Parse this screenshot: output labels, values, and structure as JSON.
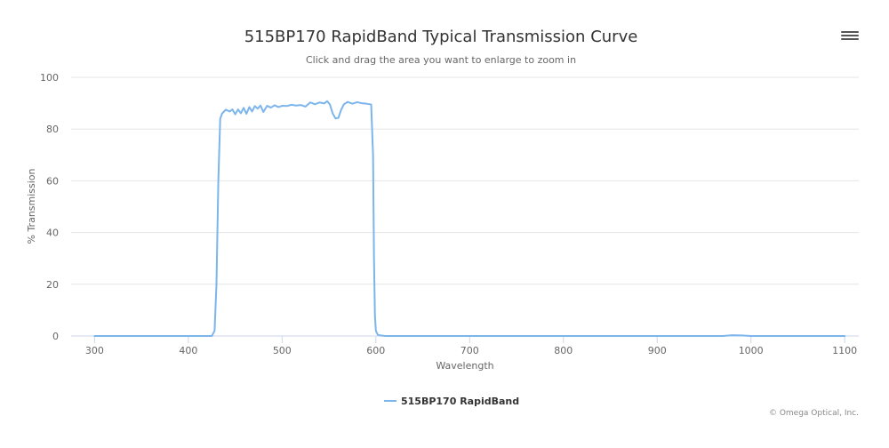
{
  "chart_data": {
    "type": "line",
    "title": "515BP170 RapidBand Typical Transmission Curve",
    "subtitle": "Click and drag the area you want to enlarge to zoom in",
    "xlabel": "Wavelength",
    "ylabel": "% Transmission",
    "xlim": [
      275,
      1115
    ],
    "ylim": [
      0,
      100
    ],
    "xticks": [
      300,
      400,
      500,
      600,
      700,
      800,
      900,
      1000,
      1100
    ],
    "yticks": [
      0,
      20,
      40,
      60,
      80,
      100
    ],
    "grid": true,
    "legend_position": "bottom-center",
    "colors": {
      "series": "#7cb5ec",
      "grid": "#e6e6e6",
      "axis": "#ccd6eb",
      "text": "#333333",
      "label": "#666666"
    },
    "series": [
      {
        "name": "515BP170 RapidBand",
        "x": [
          300,
          400,
          425,
          428,
          430,
          432,
          434,
          436,
          440,
          444,
          447,
          450,
          453,
          456,
          459,
          462,
          465,
          468,
          471,
          474,
          477,
          480,
          484,
          488,
          492,
          496,
          500,
          505,
          510,
          515,
          520,
          525,
          530,
          535,
          540,
          545,
          548,
          551,
          554,
          557,
          560,
          563,
          566,
          570,
          575,
          580,
          585,
          590,
          595,
          597,
          598,
          599,
          600,
          602,
          605,
          610,
          700,
          800,
          900,
          970,
          980,
          990,
          1000,
          1100
        ],
        "y": [
          0,
          0,
          0,
          2,
          20,
          60,
          84,
          86,
          87.5,
          86.8,
          87.6,
          85.7,
          87.6,
          86.1,
          88.2,
          85.9,
          88.5,
          86.8,
          88.9,
          87.9,
          89.1,
          86.6,
          89.0,
          88.3,
          89.2,
          88.5,
          89.0,
          88.9,
          89.4,
          89.1,
          89.3,
          88.7,
          90.3,
          89.6,
          90.3,
          89.9,
          90.8,
          89.5,
          86.0,
          84.1,
          84.3,
          87.5,
          89.6,
          90.5,
          89.8,
          90.4,
          90.0,
          89.8,
          89.5,
          70,
          30,
          8,
          2,
          0.5,
          0.2,
          0,
          0,
          0,
          0,
          0,
          0.3,
          0.2,
          0,
          0
        ]
      }
    ]
  },
  "ui": {
    "menu_icon": "hamburger-menu-icon",
    "credits": "© Omega Optical, Inc."
  }
}
